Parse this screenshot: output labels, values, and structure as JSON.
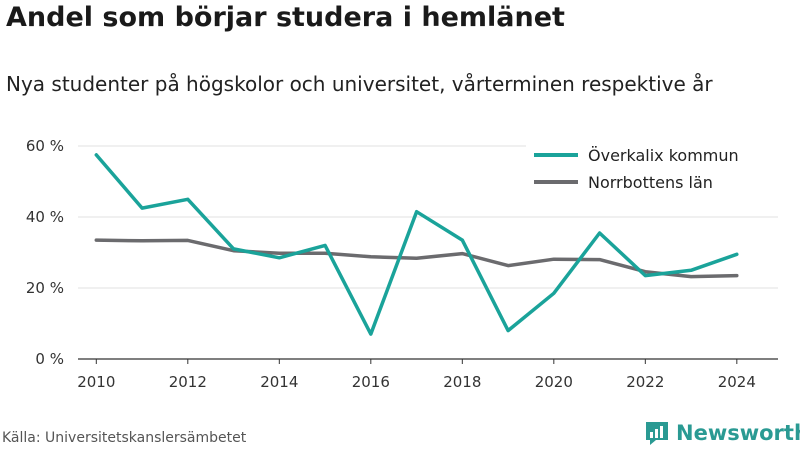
{
  "title": "Andel som börjar studera i hemlänet",
  "subtitle": "Nya studenter på högskolor och universitet, vårterminen respektive år",
  "source": "Källa: Universitetskanslersämbetet",
  "brand": "Newsworthy",
  "colors": {
    "overkalix": "#1aa39a",
    "norrbotten": "#6b6b6e",
    "grid": "#e2e2e2",
    "brand": "#2a9a93"
  },
  "chart_data": {
    "type": "line",
    "x": [
      2010,
      2011,
      2012,
      2013,
      2014,
      2015,
      2016,
      2017,
      2018,
      2019,
      2020,
      2021,
      2022,
      2023,
      2024
    ],
    "series": [
      {
        "name": "Överkalix kommun",
        "values": [
          57.5,
          42.5,
          45.0,
          31.0,
          28.5,
          32.0,
          7.0,
          41.5,
          33.5,
          8.0,
          18.5,
          35.5,
          23.5,
          25.0,
          29.5
        ]
      },
      {
        "name": "Norrbottens län",
        "values": [
          33.5,
          33.3,
          33.4,
          30.5,
          29.8,
          29.8,
          28.8,
          28.4,
          29.7,
          26.3,
          28.1,
          28.0,
          24.6,
          23.2,
          23.5
        ]
      }
    ],
    "ylim": [
      0,
      60
    ],
    "yticks": [
      0,
      20,
      40,
      60
    ],
    "ytick_labels": [
      "0 %",
      "20 %",
      "40 %",
      "60 %"
    ],
    "xticks": [
      2010,
      2012,
      2014,
      2016,
      2018,
      2020,
      2022,
      2024
    ],
    "xtick_labels": [
      "2010",
      "2012",
      "2014",
      "2016",
      "2018",
      "2020",
      "2022",
      "2024"
    ],
    "grid": true,
    "legend_position": "top-right"
  }
}
